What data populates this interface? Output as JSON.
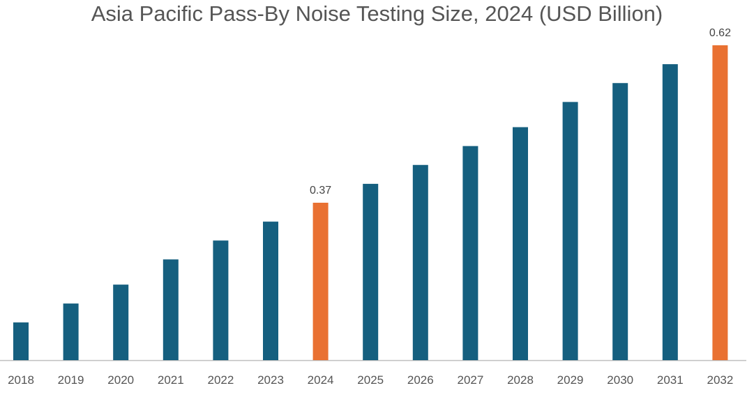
{
  "chart_data": {
    "type": "bar",
    "title": "Asia Pacific Pass-By Noise Testing Size, 2024 (USD Billion)",
    "xlabel": "",
    "ylabel": "",
    "categories": [
      "2018",
      "2019",
      "2020",
      "2021",
      "2022",
      "2023",
      "2024",
      "2025",
      "2026",
      "2027",
      "2028",
      "2029",
      "2030",
      "2031",
      "2032"
    ],
    "values": [
      0.18,
      0.21,
      0.24,
      0.28,
      0.31,
      0.34,
      0.37,
      0.4,
      0.43,
      0.46,
      0.49,
      0.53,
      0.56,
      0.59,
      0.62
    ],
    "ylim": [
      0.12,
      0.65
    ],
    "grid": false,
    "legend": "none",
    "data_labels": {
      "2024": "0.37",
      "2032": "0.62"
    },
    "highlight_categories": [
      "2024",
      "2032"
    ],
    "colors": {
      "default": "#155f7f",
      "highlight": "#e97132",
      "axis": "#bfbfbf"
    }
  }
}
